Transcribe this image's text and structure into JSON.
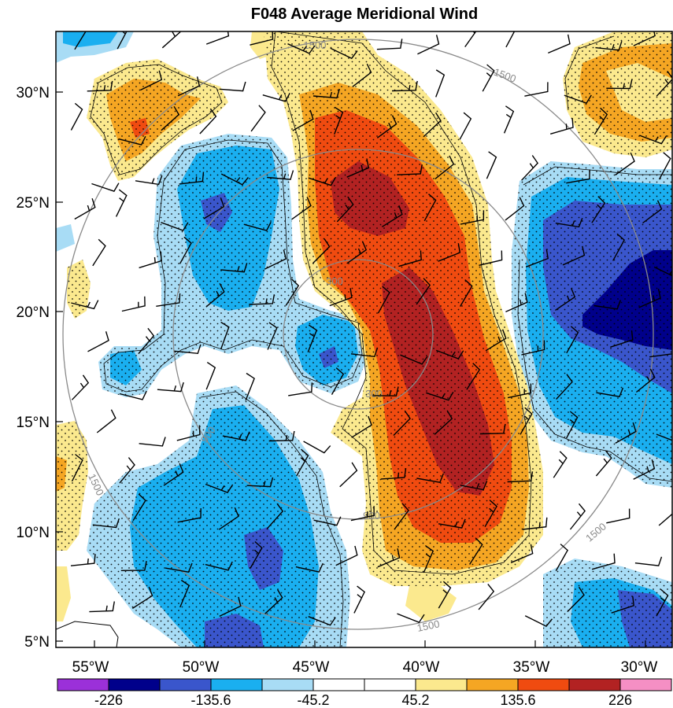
{
  "figure": {
    "title": "F048 Average Meridional Wind",
    "lat_labels": [
      "30°N",
      "25°N",
      "20°N",
      "15°N",
      "10°N",
      "5°N"
    ],
    "lon_labels": [
      "55°W",
      "50°W",
      "45°W",
      "40°W",
      "35°W",
      "30°W"
    ]
  },
  "colorbar": {
    "tick_labels": [
      "-226",
      "-135.6",
      "-45.2",
      "45.2",
      "135.6",
      "226"
    ],
    "colors": [
      "#9b30d9",
      "#00008b",
      "#3a56cc",
      "#1aaff0",
      "#a8dcf5",
      "#ffffff",
      "#ffffff",
      "#fbe98e",
      "#f5a623",
      "#f04b10",
      "#b22222",
      "#f58fc4"
    ]
  },
  "range_rings": {
    "labels": [
      "300",
      "900",
      "1500"
    ]
  },
  "icons": {
    "wind_barbs": "wind-barb-icon",
    "stippling": "significance-stipple"
  }
}
